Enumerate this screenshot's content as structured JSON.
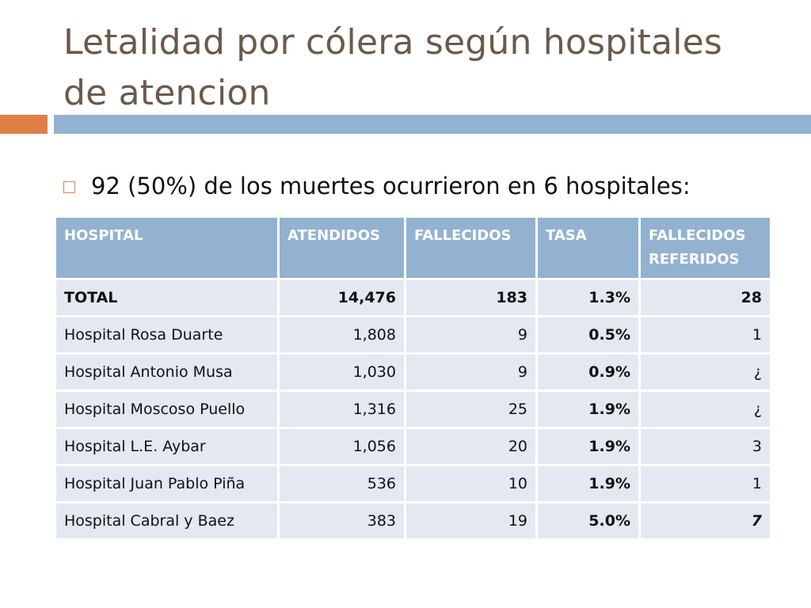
{
  "slide": {
    "title": "Letalidad por cólera según hospitales de atencion",
    "bullet": "92 (50%) de los muertes ocurrieron en 6 hospitales:"
  },
  "table": {
    "headers": [
      "HOSPITAL",
      "ATENDIDOS",
      "FALLECIDOS",
      "TASA",
      "FALLECIDOS REFERIDOS"
    ],
    "total": {
      "hospital": "TOTAL",
      "atendidos": "14,476",
      "fallecidos": "183",
      "tasa": "1.3%",
      "referidos": "28"
    },
    "rows": [
      {
        "hospital": "Hospital Rosa Duarte",
        "atendidos": "1,808",
        "fallecidos": "9",
        "tasa": "0.5%",
        "referidos": "1"
      },
      {
        "hospital": "Hospital Antonio Musa",
        "atendidos": "1,030",
        "fallecidos": "9",
        "tasa": "0.9%",
        "referidos": "¿"
      },
      {
        "hospital": "Hospital Moscoso Puello",
        "atendidos": "1,316",
        "fallecidos": "25",
        "tasa": "1.9%",
        "referidos": "¿"
      },
      {
        "hospital": "Hospital L.E. Aybar",
        "atendidos": "1,056",
        "fallecidos": "20",
        "tasa": "1.9%",
        "referidos": "3"
      },
      {
        "hospital": "Hospital Juan Pablo Piña",
        "atendidos": "536",
        "fallecidos": "10",
        "tasa": "1.9%",
        "referidos": "1"
      },
      {
        "hospital": "Hospital Cabral y Baez",
        "atendidos": "383",
        "fallecidos": "19",
        "tasa": "5.0%",
        "referidos": "7"
      }
    ]
  },
  "colors": {
    "title": "#6b5a4a",
    "accent_orange": "#e07f45",
    "accent_blue": "#93b2d0",
    "cell_bg": "#e3e8f1",
    "rate_low": "#1e9a3c",
    "rate_high": "#c01818"
  },
  "icons": {
    "bullet": "square-bullet-icon"
  }
}
